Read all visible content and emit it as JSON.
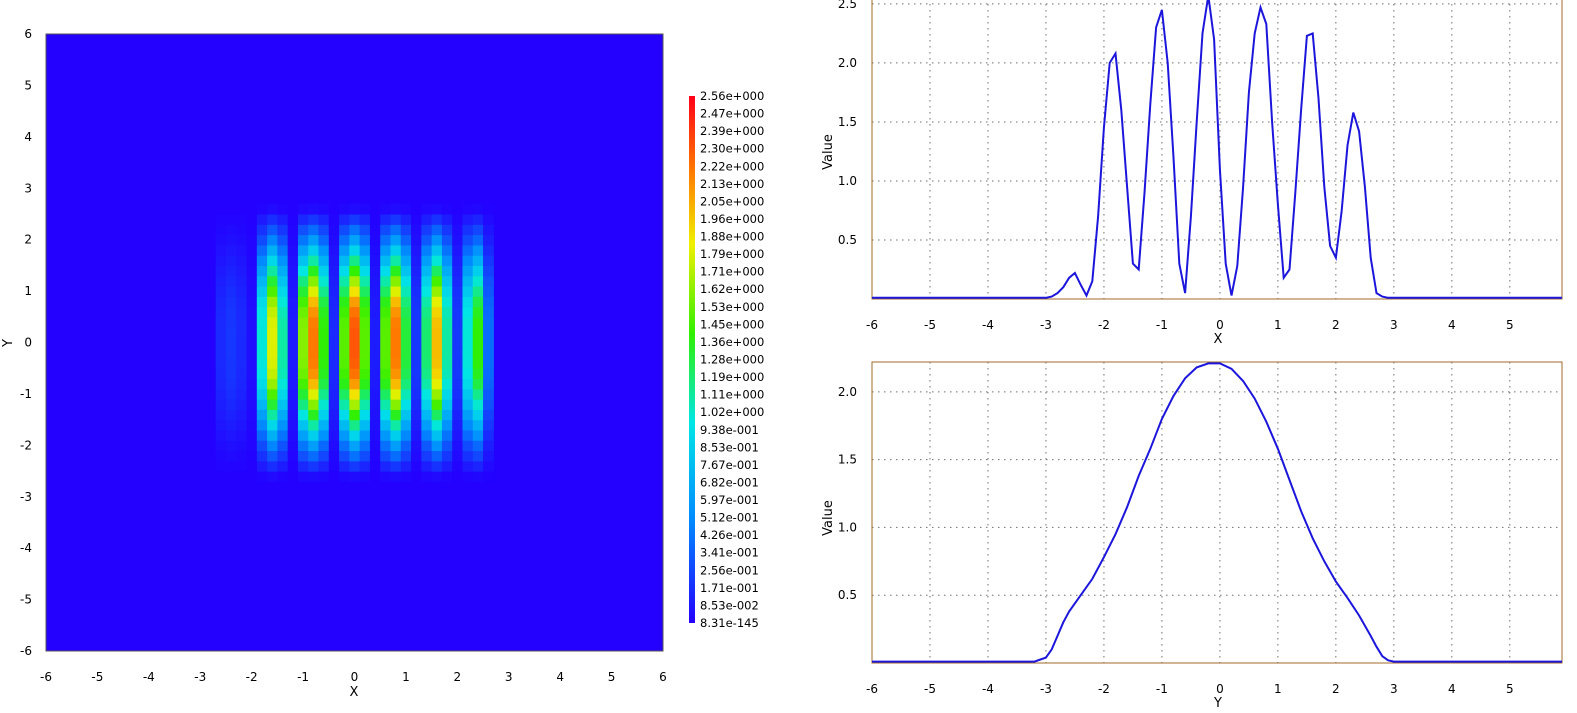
{
  "colors": {
    "plot_bg": "#2400ff",
    "line": "#1c16dc",
    "frame": "#a06a2a",
    "grid": "#6e6e6e"
  },
  "chart_data": [
    {
      "type": "heatmap",
      "xlabel": "X",
      "ylabel": "Y",
      "xlim": [
        -6,
        6
      ],
      "ylim": [
        -6,
        6
      ],
      "xticks": [
        "-6",
        "-5",
        "-4",
        "-3",
        "-2",
        "-1",
        "0",
        "1",
        "2",
        "3",
        "4",
        "5",
        "6"
      ],
      "yticks": [
        "6",
        "5",
        "4",
        "3",
        "2",
        "1",
        "0",
        "-1",
        "-2",
        "-3",
        "-4",
        "-5",
        "-6"
      ],
      "value_range": [
        0,
        2.56
      ],
      "colorbar_labels": [
        "2.56e+000",
        "2.47e+000",
        "2.39e+000",
        "2.30e+000",
        "2.22e+000",
        "2.13e+000",
        "2.05e+000",
        "1.96e+000",
        "1.88e+000",
        "1.79e+000",
        "1.71e+000",
        "1.62e+000",
        "1.53e+000",
        "1.45e+000",
        "1.36e+000",
        "1.28e+000",
        "1.19e+000",
        "1.11e+000",
        "1.02e+000",
        "9.38e-001",
        "8.53e-001",
        "7.67e-001",
        "6.82e-001",
        "5.97e-001",
        "5.12e-001",
        "4.26e-001",
        "3.41e-001",
        "2.56e-001",
        "1.71e-001",
        "8.53e-002",
        "8.31e-145"
      ],
      "x": [
        -2.6,
        -2.4,
        -2.2,
        -2.0,
        -1.8,
        -1.6,
        -1.4,
        -1.2,
        -1.0,
        -0.8,
        -0.6,
        -0.4,
        -0.2,
        0.0,
        0.2,
        0.4,
        0.6,
        0.8,
        1.0,
        1.2,
        1.4,
        1.6,
        1.8,
        2.0,
        2.2,
        2.4,
        2.6
      ],
      "y": [
        -2.6,
        -2.4,
        -2.2,
        -2.0,
        -1.8,
        -1.6,
        -1.4,
        -1.2,
        -1.0,
        -0.8,
        -0.6,
        -0.4,
        -0.2,
        0.0,
        0.2,
        0.4,
        0.6,
        0.8,
        1.0,
        1.2,
        1.4,
        1.6,
        1.8,
        2.0,
        2.2,
        2.4,
        2.6
      ],
      "row_profile": [
        0.15,
        0.2,
        0.15,
        0.05,
        1.0,
        1.8,
        1.1,
        0.1,
        1.6,
        2.2,
        1.4,
        0.15,
        1.5,
        2.3,
        1.5,
        0.1,
        1.5,
        2.2,
        1.3,
        0.2,
        1.2,
        2.0,
        1.1,
        0.2,
        1.0,
        1.4,
        0.4
      ],
      "column_profile": [
        0.04,
        0.2,
        0.4,
        0.6,
        0.85,
        1.1,
        1.35,
        1.6,
        1.8,
        2.0,
        2.12,
        2.18,
        2.2,
        2.2,
        2.2,
        2.18,
        2.12,
        2.0,
        1.8,
        1.6,
        1.35,
        1.1,
        0.85,
        0.6,
        0.4,
        0.2,
        0.04
      ]
    },
    {
      "type": "line",
      "xlabel": "X",
      "ylabel": "Value",
      "xlim": [
        -6,
        5.9
      ],
      "ylim": [
        0,
        2.55
      ],
      "xticks": [
        "-6",
        "-5",
        "-4",
        "-3",
        "-2",
        "-1",
        "0",
        "1",
        "2",
        "3",
        "4",
        "5"
      ],
      "yticks": [
        "0.5",
        "1.0",
        "1.5",
        "2.0",
        "2.5"
      ],
      "x": [
        -6,
        -5,
        -4,
        -3,
        -2.9,
        -2.8,
        -2.7,
        -2.6,
        -2.5,
        -2.4,
        -2.3,
        -2.2,
        -2.1,
        -2.0,
        -1.9,
        -1.8,
        -1.7,
        -1.6,
        -1.5,
        -1.4,
        -1.3,
        -1.2,
        -1.1,
        -1.0,
        -0.9,
        -0.8,
        -0.7,
        -0.6,
        -0.5,
        -0.4,
        -0.3,
        -0.2,
        -0.1,
        0.0,
        0.1,
        0.2,
        0.3,
        0.4,
        0.5,
        0.6,
        0.7,
        0.8,
        0.9,
        1.0,
        1.1,
        1.2,
        1.3,
        1.4,
        1.5,
        1.6,
        1.7,
        1.8,
        1.9,
        2.0,
        2.1,
        2.2,
        2.3,
        2.4,
        2.5,
        2.6,
        2.7,
        2.8,
        2.9,
        3,
        4,
        5,
        5.9
      ],
      "values": [
        0.01,
        0.01,
        0.01,
        0.01,
        0.02,
        0.05,
        0.1,
        0.18,
        0.22,
        0.12,
        0.03,
        0.15,
        0.7,
        1.45,
        2.0,
        2.08,
        1.6,
        0.95,
        0.3,
        0.25,
        0.9,
        1.65,
        2.3,
        2.45,
        2.0,
        1.2,
        0.3,
        0.05,
        0.7,
        1.5,
        2.25,
        2.57,
        2.2,
        1.1,
        0.3,
        0.03,
        0.28,
        0.95,
        1.75,
        2.25,
        2.47,
        2.33,
        1.5,
        0.8,
        0.18,
        0.25,
        0.9,
        1.6,
        2.23,
        2.25,
        1.7,
        0.95,
        0.45,
        0.35,
        0.75,
        1.3,
        1.58,
        1.42,
        0.95,
        0.35,
        0.05,
        0.02,
        0.01,
        0.01,
        0.01,
        0.01,
        0.01
      ]
    },
    {
      "type": "line",
      "xlabel": "Y",
      "ylabel": "Value",
      "xlim": [
        -6,
        5.9
      ],
      "ylim": [
        0,
        2.22
      ],
      "xticks": [
        "-6",
        "-5",
        "-4",
        "-3",
        "-2",
        "-1",
        "0",
        "1",
        "2",
        "3",
        "4",
        "5"
      ],
      "yticks": [
        "0.5",
        "1.0",
        "1.5",
        "2.0"
      ],
      "x": [
        -6,
        -5,
        -4,
        -3.2,
        -3.0,
        -2.9,
        -2.8,
        -2.7,
        -2.6,
        -2.4,
        -2.2,
        -2.0,
        -1.8,
        -1.6,
        -1.4,
        -1.2,
        -1.0,
        -0.8,
        -0.6,
        -0.4,
        -0.2,
        0.0,
        0.2,
        0.4,
        0.6,
        0.8,
        1.0,
        1.2,
        1.4,
        1.6,
        1.8,
        2.0,
        2.2,
        2.4,
        2.6,
        2.7,
        2.8,
        2.9,
        3.0,
        3.2,
        4,
        5,
        5.9
      ],
      "values": [
        0.01,
        0.01,
        0.01,
        0.01,
        0.04,
        0.1,
        0.2,
        0.3,
        0.38,
        0.5,
        0.62,
        0.78,
        0.95,
        1.15,
        1.38,
        1.58,
        1.8,
        1.97,
        2.1,
        2.18,
        2.21,
        2.21,
        2.17,
        2.08,
        1.95,
        1.78,
        1.58,
        1.35,
        1.12,
        0.92,
        0.75,
        0.6,
        0.48,
        0.35,
        0.2,
        0.12,
        0.05,
        0.02,
        0.01,
        0.01,
        0.01,
        0.01,
        0.01
      ]
    }
  ]
}
